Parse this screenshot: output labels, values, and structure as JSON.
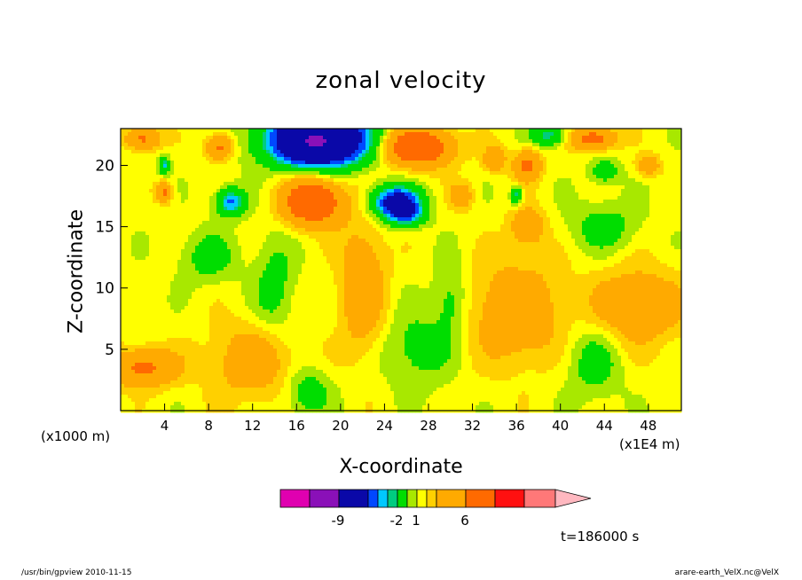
{
  "chart_data": {
    "type": "heatmap",
    "title": "zonal velocity",
    "xlabel": "X-coordinate",
    "ylabel": "Z-coordinate",
    "x_unit": "(x1E4 m)",
    "y_unit": "(x1000 m)",
    "xlim": [
      0,
      51
    ],
    "ylim": [
      0,
      23
    ],
    "x_ticks": [
      4,
      8,
      12,
      16,
      20,
      24,
      28,
      32,
      36,
      40,
      44,
      48
    ],
    "y_ticks": [
      5,
      10,
      15,
      20
    ],
    "colorbar": {
      "colors": [
        "#e000b0",
        "#8a10b8",
        "#0a08a8",
        "#0048ff",
        "#00c8ff",
        "#00cc80",
        "#00dd00",
        "#a8e800",
        "#ffff00",
        "#ffd000",
        "#ffaa00",
        "#ff6a00",
        "#ff1010",
        "#ff7878",
        "#ffb8c0"
      ],
      "tick_labels": [
        {
          "label": "-9",
          "index": 2
        },
        {
          "label": "-2",
          "index": 6
        },
        {
          "label": "1",
          "index": 8
        },
        {
          "label": "6",
          "index": 11
        }
      ]
    },
    "features": [
      {
        "x": 18,
        "z": 22.5,
        "sx": 4.5,
        "sz": 2.2,
        "value": -9
      },
      {
        "x": 18,
        "z": 21.0,
        "sx": 4.0,
        "sz": 1.3,
        "value": -3
      },
      {
        "x": 10,
        "z": 17.0,
        "sx": 1.3,
        "sz": 1.1,
        "value": -4
      },
      {
        "x": 25,
        "z": 17.0,
        "sx": 2.2,
        "sz": 1.3,
        "value": -6
      },
      {
        "x": 26,
        "z": 16.0,
        "sx": 1.6,
        "sz": 1.0,
        "value": -3
      },
      {
        "x": 39,
        "z": 22.5,
        "sx": 1.6,
        "sz": 0.9,
        "value": -3
      },
      {
        "x": 44,
        "z": 19.5,
        "sx": 1.3,
        "sz": 1.0,
        "value": -2
      },
      {
        "x": 4,
        "z": 20.0,
        "sx": 0.5,
        "sz": 0.7,
        "value": -3
      },
      {
        "x": 36,
        "z": 17.5,
        "sx": 0.5,
        "sz": 0.8,
        "value": -3
      },
      {
        "x": 17.5,
        "z": 17.0,
        "sx": 2.6,
        "sz": 1.8,
        "value": 6
      },
      {
        "x": 27,
        "z": 21.5,
        "sx": 3.0,
        "sz": 1.5,
        "value": 6
      },
      {
        "x": 2,
        "z": 22.2,
        "sx": 1.5,
        "sz": 0.9,
        "value": 3.5
      },
      {
        "x": 9,
        "z": 21.5,
        "sx": 1.2,
        "sz": 1.0,
        "value": 3.5
      },
      {
        "x": 4,
        "z": 17.8,
        "sx": 0.7,
        "sz": 0.8,
        "value": 3.5
      },
      {
        "x": 37,
        "z": 20.0,
        "sx": 1.2,
        "sz": 1.2,
        "value": 3.5
      },
      {
        "x": 43,
        "z": 22.2,
        "sx": 2.0,
        "sz": 0.9,
        "value": 4
      },
      {
        "x": 34,
        "z": 20.5,
        "sx": 1.0,
        "sz": 1.0,
        "value": 2.5
      },
      {
        "x": 48,
        "z": 20.0,
        "sx": 1.0,
        "sz": 0.8,
        "value": 2.5
      },
      {
        "x": 37,
        "z": 15.0,
        "sx": 1.5,
        "sz": 1.5,
        "value": 2.5
      },
      {
        "x": 31,
        "z": 17.5,
        "sx": 1.0,
        "sz": 1.0,
        "value": 2.5
      },
      {
        "x": 2,
        "z": 3.5,
        "sx": 3.0,
        "sz": 1.5,
        "value": 3.5
      },
      {
        "x": 22,
        "z": 10.0,
        "sx": 2.0,
        "sz": 5.0,
        "value": 2.5
      },
      {
        "x": 36,
        "z": 8.0,
        "sx": 4.0,
        "sz": 4.0,
        "value": 2.5
      },
      {
        "x": 47,
        "z": 8.5,
        "sx": 4.0,
        "sz": 3.0,
        "value": 2.5
      },
      {
        "x": 12,
        "z": 4.0,
        "sx": 4.0,
        "sz": 3.0,
        "value": 2.0
      },
      {
        "x": 17,
        "z": 1.5,
        "sx": 2.0,
        "sz": 2.0,
        "value": -1.8
      },
      {
        "x": 27,
        "z": 5.0,
        "sx": 3.0,
        "sz": 3.0,
        "value": -1.5
      },
      {
        "x": 8,
        "z": 12.5,
        "sx": 2.5,
        "sz": 2.0,
        "value": -1.5
      },
      {
        "x": 14,
        "z": 10.0,
        "sx": 1.8,
        "sz": 4.0,
        "value": -1.5
      },
      {
        "x": 44,
        "z": 15.0,
        "sx": 3.0,
        "sz": 2.0,
        "value": -1.5
      },
      {
        "x": 43,
        "z": 4.0,
        "sx": 2.5,
        "sz": 3.0,
        "value": -1.5
      },
      {
        "x": 30,
        "z": 9.0,
        "sx": 1.5,
        "sz": 3.0,
        "value": -1.5
      }
    ]
  },
  "labels": {
    "time": "t=186000 s",
    "footer_left": "/usr/bin/gpview   2010-11-15",
    "footer_right": "arare-earth_VelX.nc@VelX"
  }
}
